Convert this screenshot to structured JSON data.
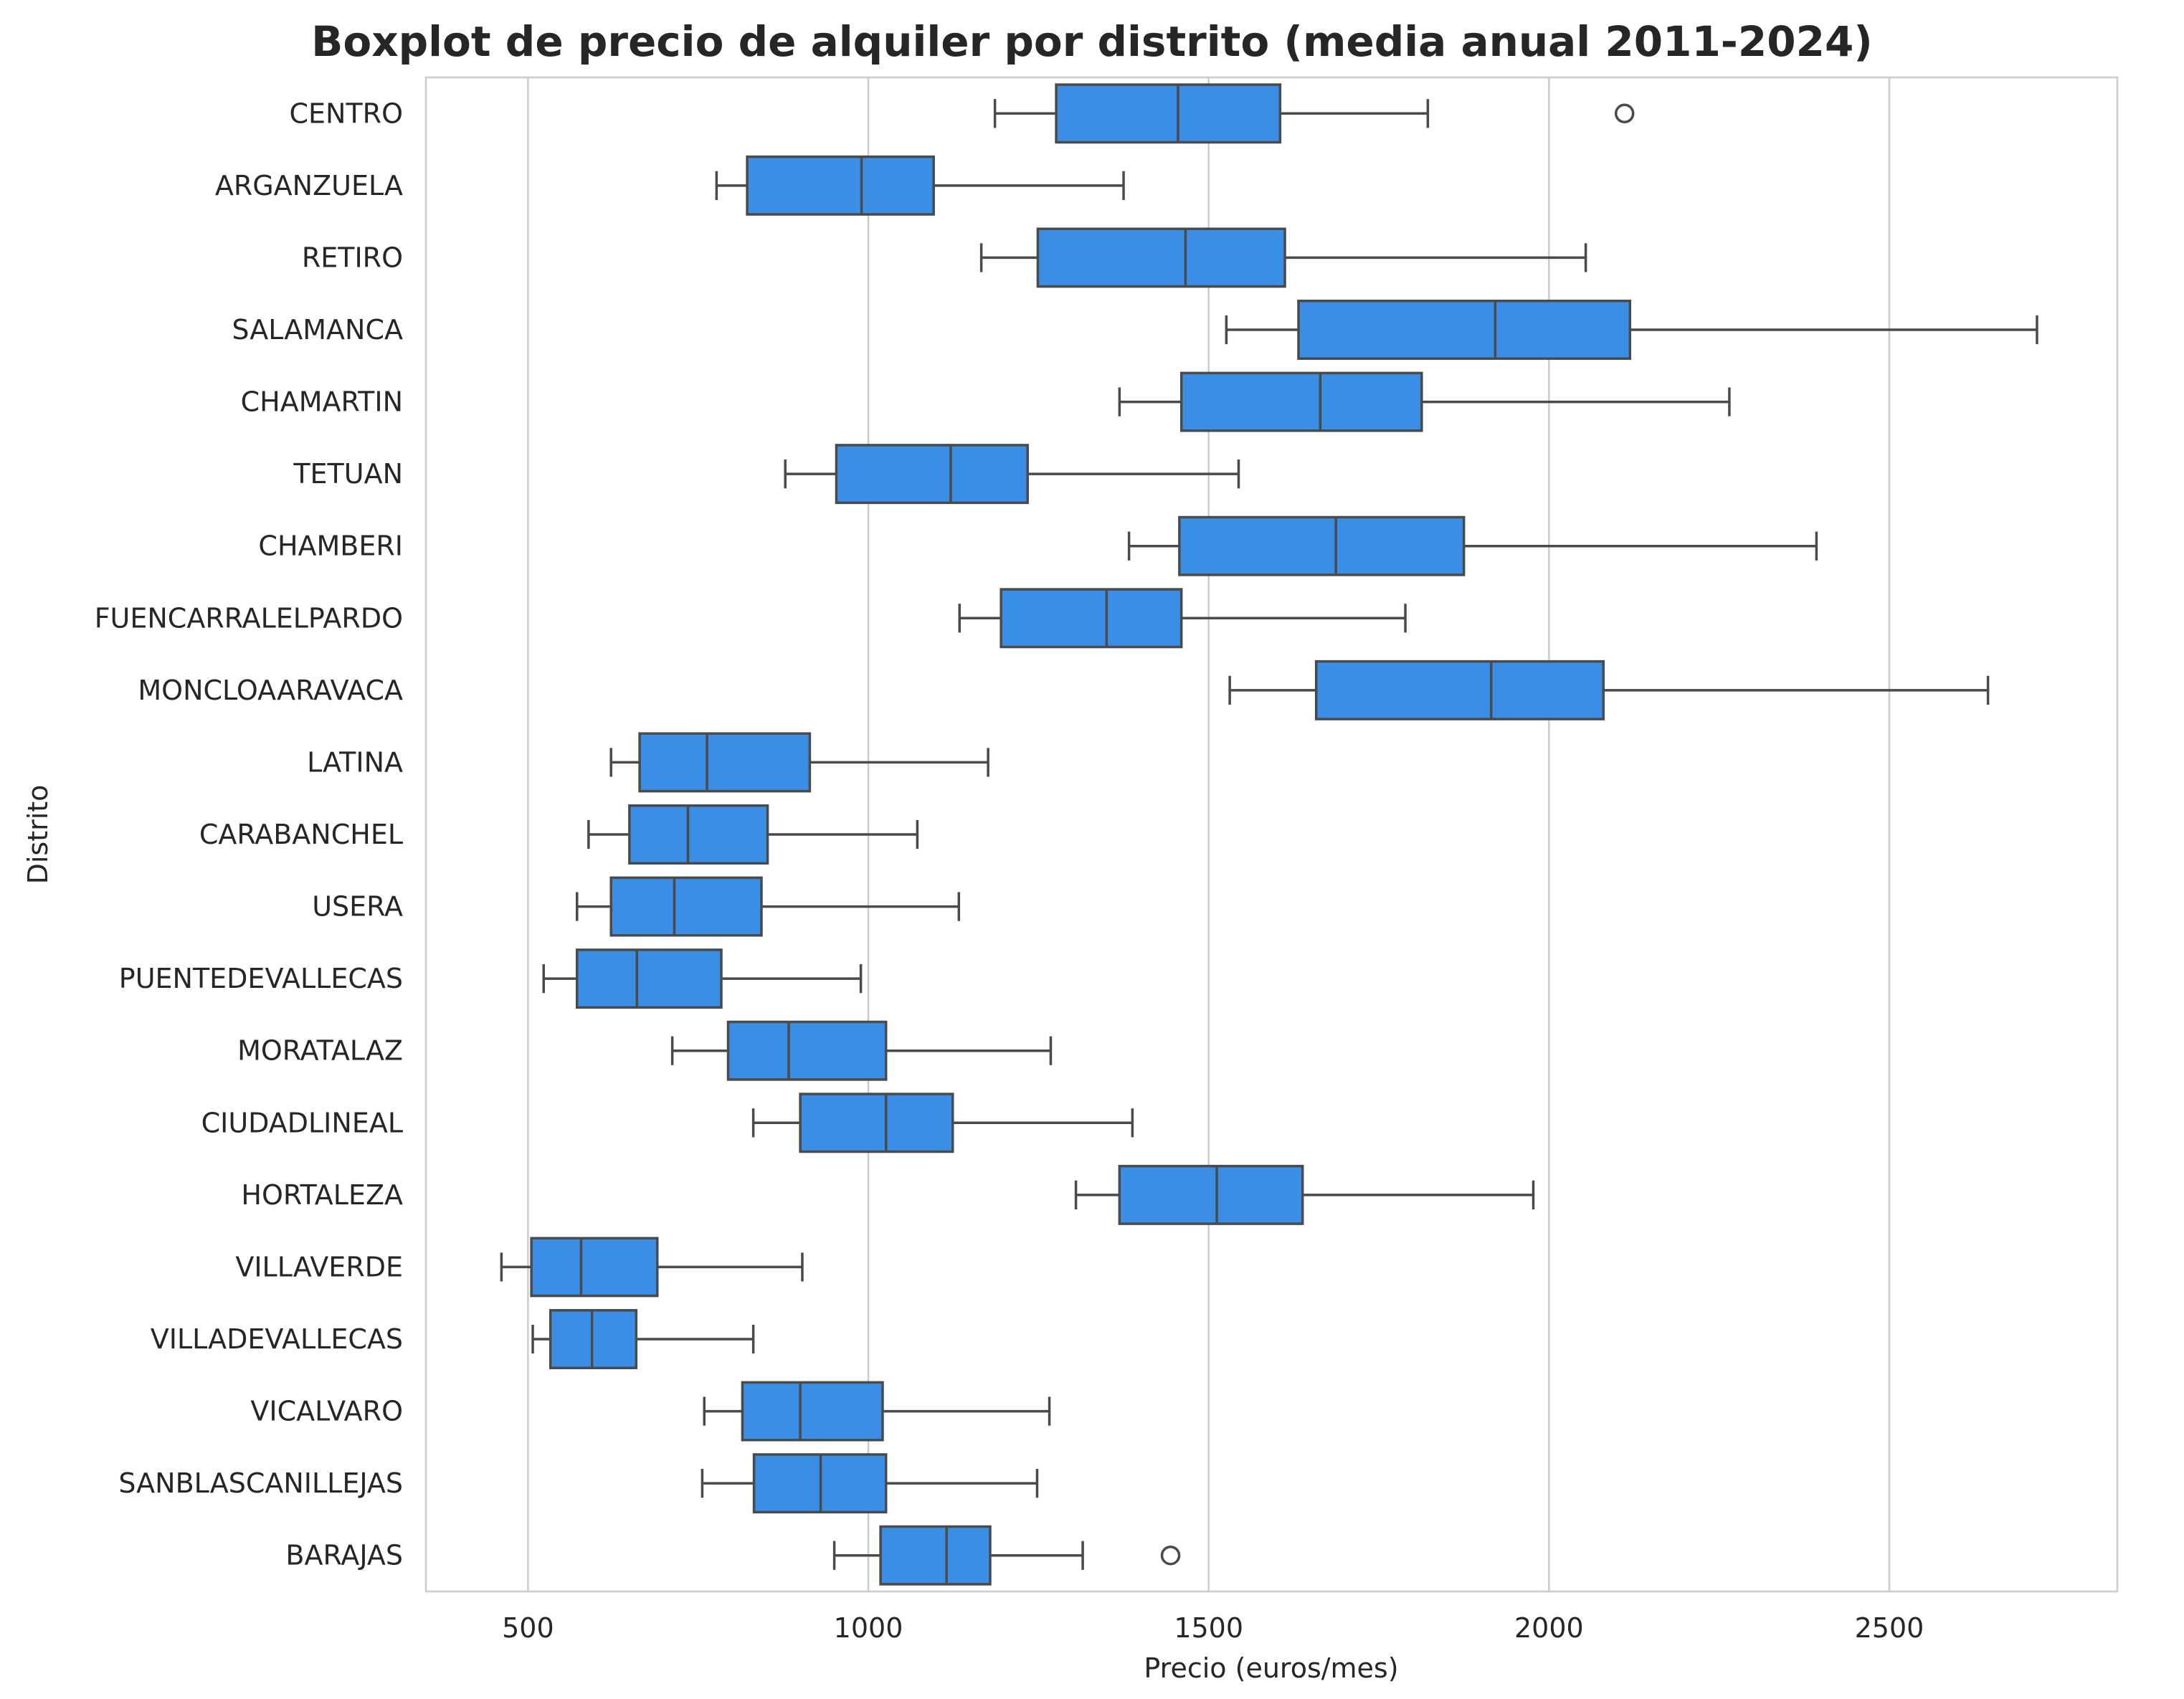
{
  "chart_data": {
    "type": "boxplot",
    "orientation": "horizontal",
    "title": "Boxplot de precio de alquiler por distrito (media anual 2011-2024)",
    "xlabel": "Precio (euros/mes)",
    "ylabel": "Distrito",
    "xlim": [
      350,
      2835
    ],
    "xticks": [
      500,
      1000,
      1500,
      2000,
      2500
    ],
    "grid": "vertical",
    "colors": {
      "box": "#3a8ee6",
      "line": "#4a4a4a",
      "grid": "#cccccc",
      "frame": "#cccccc"
    },
    "categories": [
      "CENTRO",
      "ARGANZUELA",
      "RETIRO",
      "SALAMANCA",
      "CHAMARTIN",
      "TETUAN",
      "CHAMBERI",
      "FUENCARRALELPARDO",
      "MONCLOAARAVACA",
      "LATINA",
      "CARABANCHEL",
      "USERA",
      "PUENTEDEVALLECAS",
      "MORATALAZ",
      "CIUDADLINEAL",
      "HORTALEZA",
      "VILLAVERDE",
      "VILLADEVALLECAS",
      "VICALVARO",
      "SANBLASCANILLEJAS",
      "BARAJAS"
    ],
    "boxes": [
      {
        "whisker_low": 1186,
        "q1": 1276,
        "median": 1455,
        "q3": 1605,
        "whisker_high": 1822,
        "outliers": [
          2111
        ]
      },
      {
        "whisker_low": 777,
        "q1": 822,
        "median": 990,
        "q3": 1096,
        "whisker_high": 1375,
        "outliers": []
      },
      {
        "whisker_low": 1166,
        "q1": 1249,
        "median": 1466,
        "q3": 1612,
        "whisker_high": 2054,
        "outliers": []
      },
      {
        "whisker_low": 1526,
        "q1": 1632,
        "median": 1921,
        "q3": 2119,
        "whisker_high": 2717,
        "outliers": []
      },
      {
        "whisker_low": 1369,
        "q1": 1460,
        "median": 1664,
        "q3": 1813,
        "whisker_high": 2265,
        "outliers": []
      },
      {
        "whisker_low": 878,
        "q1": 953,
        "median": 1121,
        "q3": 1234,
        "whisker_high": 1544,
        "outliers": []
      },
      {
        "whisker_low": 1383,
        "q1": 1457,
        "median": 1687,
        "q3": 1875,
        "whisker_high": 2393,
        "outliers": []
      },
      {
        "whisker_low": 1134,
        "q1": 1195,
        "median": 1350,
        "q3": 1460,
        "whisker_high": 1789,
        "outliers": []
      },
      {
        "whisker_low": 1531,
        "q1": 1658,
        "median": 1915,
        "q3": 2080,
        "whisker_high": 2645,
        "outliers": []
      },
      {
        "whisker_low": 622,
        "q1": 664,
        "median": 763,
        "q3": 914,
        "whisker_high": 1176,
        "outliers": []
      },
      {
        "whisker_low": 589,
        "q1": 649,
        "median": 735,
        "q3": 852,
        "whisker_high": 1072,
        "outliers": []
      },
      {
        "whisker_low": 572,
        "q1": 622,
        "median": 715,
        "q3": 843,
        "whisker_high": 1133,
        "outliers": []
      },
      {
        "whisker_low": 523,
        "q1": 572,
        "median": 660,
        "q3": 784,
        "whisker_high": 989,
        "outliers": []
      },
      {
        "whisker_low": 712,
        "q1": 794,
        "median": 883,
        "q3": 1026,
        "whisker_high": 1268,
        "outliers": []
      },
      {
        "whisker_low": 831,
        "q1": 900,
        "median": 1026,
        "q3": 1124,
        "whisker_high": 1388,
        "outliers": []
      },
      {
        "whisker_low": 1305,
        "q1": 1369,
        "median": 1512,
        "q3": 1638,
        "whisker_high": 1977,
        "outliers": []
      },
      {
        "whisker_low": 461,
        "q1": 505,
        "median": 578,
        "q3": 690,
        "whisker_high": 903,
        "outliers": []
      },
      {
        "whisker_low": 507,
        "q1": 533,
        "median": 594,
        "q3": 659,
        "whisker_high": 831,
        "outliers": []
      },
      {
        "whisker_low": 759,
        "q1": 815,
        "median": 900,
        "q3": 1021,
        "whisker_high": 1266,
        "outliers": []
      },
      {
        "whisker_low": 756,
        "q1": 832,
        "median": 930,
        "q3": 1026,
        "whisker_high": 1248,
        "outliers": []
      },
      {
        "whisker_low": 950,
        "q1": 1018,
        "median": 1115,
        "q3": 1179,
        "whisker_high": 1315,
        "outliers": [
          1444
        ]
      }
    ]
  }
}
